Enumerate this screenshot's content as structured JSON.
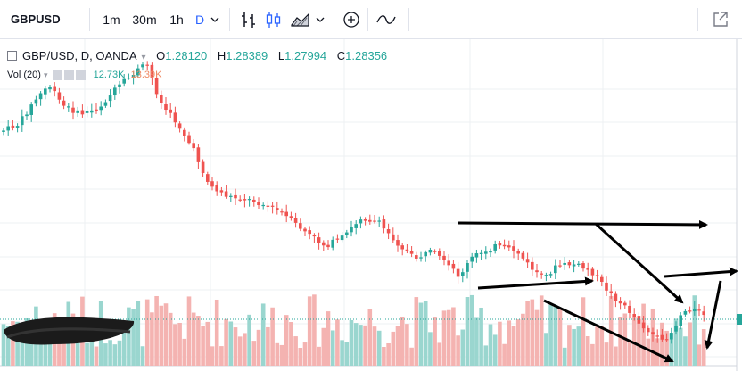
{
  "toolbar": {
    "symbol": "GBPUSD",
    "intervals": [
      "1m",
      "30m",
      "1h",
      "D"
    ],
    "active_interval": "D"
  },
  "legend": {
    "title": "GBP/USD, D, OANDA",
    "o_label": "O",
    "o_value": "1.28120",
    "h_label": "H",
    "h_value": "1.28389",
    "l_label": "L",
    "l_value": "1.27994",
    "c_label": "C",
    "c_value": "1.28356"
  },
  "volume": {
    "label": "Vol (20)",
    "value_up": "12.73K",
    "value_down": "13.39K"
  },
  "colors": {
    "up": "#26a69a",
    "down": "#ef5350",
    "up_volume": "#9ad6cf",
    "down_volume": "#f4b3b1",
    "accent": "#2962ff"
  },
  "icons": [
    "bar-style-icon",
    "candle-style-icon",
    "area-style-icon",
    "chevron-down-icon",
    "add-compare-icon",
    "indicators-icon",
    "fullscreen-icon"
  ]
}
